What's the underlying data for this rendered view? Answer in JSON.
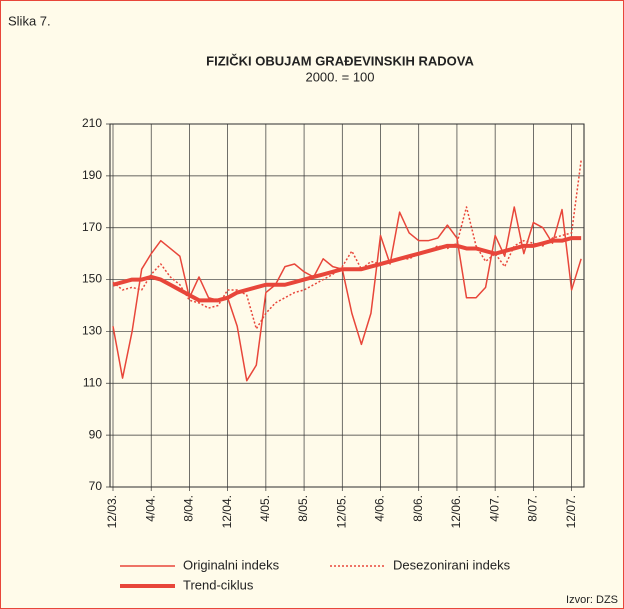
{
  "chart_data": {
    "type": "line",
    "label": "Slika 7.",
    "title": "FIZIČKI OBUJAM GRAĐEVINSKIH RADOVA",
    "subtitle": "2000. = 100",
    "source": "Izvor: DZS",
    "categories": [
      "12/03.",
      null,
      null,
      null,
      "4/04.",
      null,
      null,
      null,
      "8/04.",
      null,
      null,
      null,
      "12/04.",
      null,
      null,
      null,
      "4/05.",
      null,
      null,
      null,
      "8/05.",
      null,
      null,
      null,
      "12/05.",
      null,
      null,
      null,
      "4/06.",
      null,
      null,
      null,
      "8/06.",
      null,
      null,
      null,
      "12/06.",
      null,
      null,
      null,
      "4/07.",
      null,
      null,
      null,
      "8/07.",
      null,
      null,
      null,
      "12/07.",
      null
    ],
    "series": [
      {
        "name": "Originalni indeks",
        "color": "#e8463a",
        "style": "solid",
        "width": 1.5,
        "values": [
          132,
          112,
          130,
          154,
          160,
          165,
          162,
          159,
          143,
          151,
          143,
          142,
          143,
          132,
          111,
          117,
          145,
          148,
          155,
          156,
          153,
          151,
          158,
          155,
          154,
          137,
          125,
          137,
          167,
          156,
          176,
          168,
          165,
          165,
          166,
          171,
          166,
          143,
          143,
          147,
          167,
          159,
          178,
          160,
          172,
          170,
          164,
          177,
          146,
          158
        ]
      },
      {
        "name": "Desezonirani indeks",
        "color": "#e8463a",
        "style": "dotted",
        "width": 1.5,
        "values": [
          149,
          146,
          147,
          146,
          152,
          156,
          151,
          148,
          142,
          141,
          139,
          140,
          146,
          146,
          144,
          131,
          137,
          141,
          143,
          145,
          146,
          148,
          150,
          152,
          155,
          161,
          154,
          157,
          156,
          157,
          158,
          158,
          160,
          161,
          163,
          162,
          164,
          178,
          163,
          157,
          160,
          155,
          163,
          165,
          164,
          163,
          166,
          167,
          168,
          196
        ]
      },
      {
        "name": "Trend-ciklus",
        "color": "#e8463a",
        "style": "solid",
        "width": 4,
        "values": [
          148,
          149,
          150,
          150,
          151,
          150,
          148,
          146,
          144,
          142,
          142,
          142,
          143,
          145,
          146,
          147,
          148,
          148,
          148,
          149,
          150,
          151,
          152,
          153,
          154,
          154,
          154,
          155,
          156,
          157,
          158,
          159,
          160,
          161,
          162,
          163,
          163,
          162,
          162,
          161,
          160,
          161,
          162,
          163,
          163,
          164,
          165,
          165,
          166,
          166
        ]
      }
    ],
    "ylim": [
      70,
      210
    ],
    "yticks": [
      70,
      90,
      110,
      130,
      150,
      170,
      190,
      210
    ],
    "grid": true
  }
}
